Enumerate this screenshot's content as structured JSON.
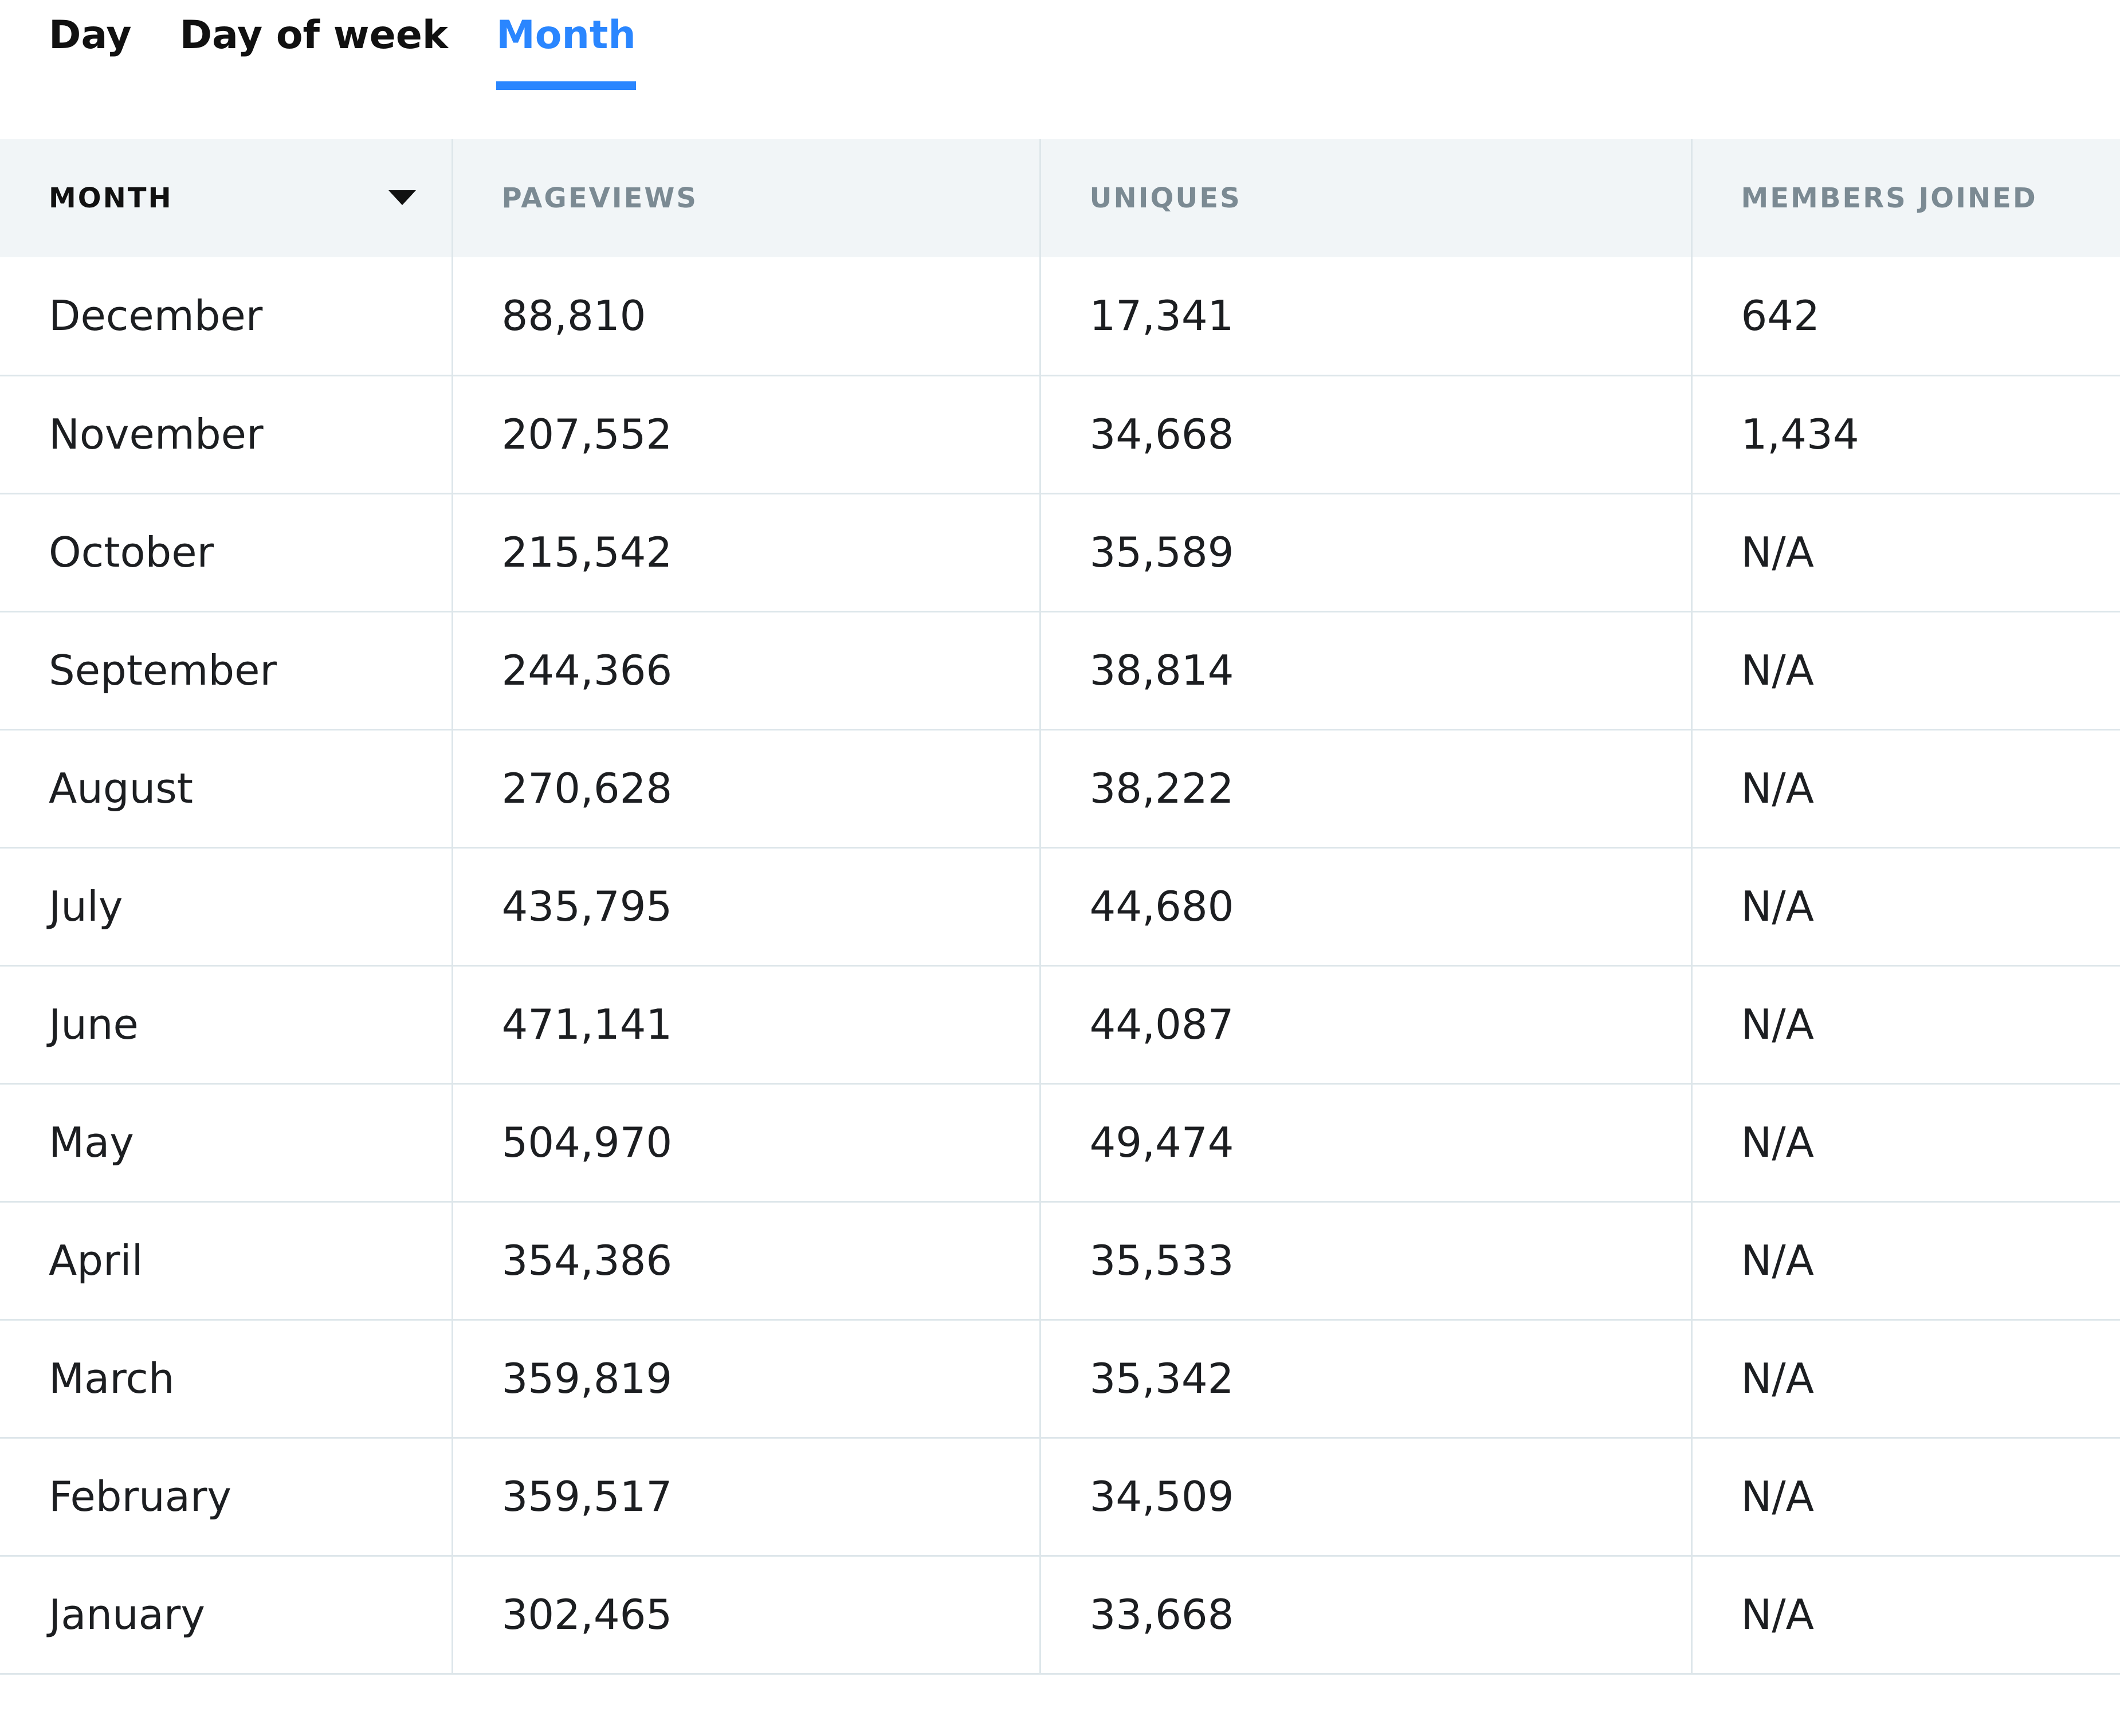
{
  "tabs": [
    {
      "label": "Day",
      "active": false
    },
    {
      "label": "Day of week",
      "active": false
    },
    {
      "label": "Month",
      "active": true
    }
  ],
  "colors": {
    "accent": "#2a86ff",
    "header_bg": "#f1f5f7",
    "border": "#dde6ea"
  },
  "table": {
    "sort_column": "MONTH",
    "sort_direction": "descending",
    "columns": [
      "MONTH",
      "PAGEVIEWS",
      "UNIQUES",
      "MEMBERS JOINED"
    ],
    "rows": [
      [
        "December",
        "88,810",
        "17,341",
        "642"
      ],
      [
        "November",
        "207,552",
        "34,668",
        "1,434"
      ],
      [
        "October",
        "215,542",
        "35,589",
        "N/A"
      ],
      [
        "September",
        "244,366",
        "38,814",
        "N/A"
      ],
      [
        "August",
        "270,628",
        "38,222",
        "N/A"
      ],
      [
        "July",
        "435,795",
        "44,680",
        "N/A"
      ],
      [
        "June",
        "471,141",
        "44,087",
        "N/A"
      ],
      [
        "May",
        "504,970",
        "49,474",
        "N/A"
      ],
      [
        "April",
        "354,386",
        "35,533",
        "N/A"
      ],
      [
        "March",
        "359,819",
        "35,342",
        "N/A"
      ],
      [
        "February",
        "359,517",
        "34,509",
        "N/A"
      ],
      [
        "January",
        "302,465",
        "33,668",
        "N/A"
      ]
    ]
  }
}
